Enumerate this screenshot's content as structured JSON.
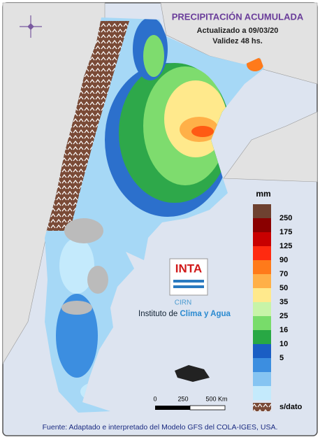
{
  "map": {
    "title": "PRECIPITACIÓN ACUMULADA",
    "updated": "Actualizado a 09/03/20",
    "validity": "Validez 48 hs.",
    "legend": {
      "unit": "mm",
      "labels": [
        250,
        175,
        125,
        90,
        70,
        50,
        35,
        25,
        16,
        10,
        5
      ],
      "colors": [
        "#6e4130",
        "#8a0000",
        "#c80000",
        "#ff2a10",
        "#ff7a1a",
        "#ffb048",
        "#ffe98c",
        "#c8f4a8",
        "#78dc6a",
        "#28a844",
        "#1a5ec4",
        "#3c8ee0",
        "#86c4f2",
        "#c4eafc"
      ],
      "no_data": "s/dato"
    },
    "scale": {
      "labels": [
        "0",
        "250",
        "500 Km"
      ]
    },
    "logo": {
      "brand": "INTA",
      "center": "CIRN",
      "institute_prefix": "Instituto de ",
      "institute_name": "Clima y Agua"
    },
    "source": "Fuente: Adaptado e interpretado del Modelo GFS del COLA-IGES, USA."
  }
}
